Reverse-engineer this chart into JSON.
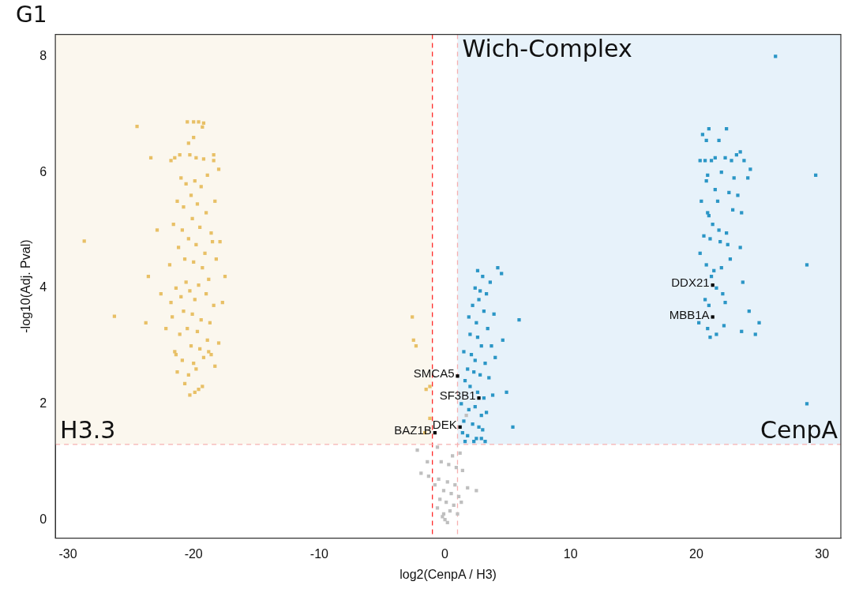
{
  "chart_data": {
    "type": "scatter",
    "title": "G1",
    "xlabel": "log2(CenpA / H3)",
    "ylabel": "-log10(Adj. Pval)",
    "xlim": [
      -31,
      31.5
    ],
    "ylim": [
      -0.32,
      8.38
    ],
    "xticks": [
      -30,
      -20,
      -10,
      0,
      10,
      20,
      30
    ],
    "yticks": [
      0,
      2,
      4,
      6,
      8
    ],
    "grid": false,
    "legend": false,
    "marker": "square",
    "bands": [
      {
        "axis": "x",
        "from": -31,
        "to": -1,
        "label": "H3.3",
        "color": "#fbf7ee"
      },
      {
        "axis": "x",
        "from": 1,
        "to": 31.5,
        "label": "CenpA",
        "color": "#e7f2fa"
      }
    ],
    "ref_lines": [
      {
        "axis": "x",
        "value": -1,
        "color": "#ff2a2a",
        "line_style": "dashed"
      },
      {
        "axis": "x",
        "value": 1,
        "label": "Wich-Complex",
        "color": "#f5b0b0",
        "line_style": "dashed"
      },
      {
        "axis": "y",
        "value": 1.3,
        "color": "#f5b0b0",
        "line_style": "dashed"
      }
    ],
    "annotations": [
      {
        "text": "DDX21",
        "x": 21.3,
        "y": 4.05
      },
      {
        "text": "MBB1A",
        "x": 21.3,
        "y": 3.5
      },
      {
        "text": "SMCA5",
        "x": 1.0,
        "y": 2.48
      },
      {
        "text": "SF3B1",
        "x": 2.7,
        "y": 2.1
      },
      {
        "text": "BAZ1B",
        "x": -0.8,
        "y": 1.5
      },
      {
        "text": "DEK",
        "x": 1.2,
        "y": 1.6
      }
    ],
    "series": [
      {
        "color": "#e8c066",
        "x": [
          -28.7,
          -26.3,
          -24.5,
          -23.4,
          -23.6,
          -23.8,
          -22.9,
          -22.6,
          -22.2,
          -21.8,
          -21.4,
          -20.3,
          -19.9,
          -19.6,
          -20.5,
          -20.0,
          -19.6,
          -19.2,
          -19.3,
          -20.0,
          -20.4,
          -21.1,
          -21.5,
          -21.8,
          -20.3,
          -19.8,
          -19.2,
          -18.4,
          -18.0,
          -18.4,
          -21.0,
          -20.6,
          -19.9,
          -19.4,
          -18.9,
          -20.2,
          -21.3,
          -20.8,
          -19.7,
          -19.0,
          -18.3,
          -20.1,
          -21.6,
          -20.9,
          -19.5,
          -18.6,
          -17.9,
          -20.4,
          -21.2,
          -19.8,
          -19.1,
          -18.5,
          -20.7,
          -21.9,
          -20.0,
          -19.3,
          -18.2,
          -17.5,
          -20.6,
          -21.4,
          -19.6,
          -18.8,
          -20.3,
          -21.0,
          -19.9,
          -19.0,
          -18.4,
          -17.7,
          -20.8,
          -21.7,
          -20.1,
          -19.4,
          -18.7,
          -20.5,
          -21.1,
          -19.7,
          -18.9,
          -18.0,
          -20.2,
          -21.5,
          -19.5,
          -18.6,
          -20.9,
          -20.0,
          -19.2,
          -18.3,
          -21.3,
          -20.4,
          -19.8,
          -18.8,
          -20.7,
          -19.3,
          -2.6,
          -2.5,
          -2.3,
          -1.5,
          -1.2,
          -1.2,
          -1.6
        ],
        "values": [
          4.81,
          3.51,
          6.79,
          6.25,
          4.2,
          3.4,
          5.0,
          3.9,
          3.3,
          3.75,
          2.85,
          2.15,
          2.2,
          2.25,
          6.87,
          6.87,
          6.87,
          6.85,
          6.78,
          6.6,
          6.5,
          6.3,
          6.25,
          6.2,
          6.3,
          6.25,
          6.23,
          6.3,
          6.05,
          6.2,
          5.9,
          5.8,
          5.85,
          5.75,
          5.95,
          5.6,
          5.5,
          5.4,
          5.45,
          5.3,
          5.5,
          5.2,
          5.1,
          5.0,
          5.05,
          4.95,
          4.8,
          4.85,
          4.7,
          4.75,
          4.6,
          4.8,
          4.5,
          4.4,
          4.45,
          4.35,
          4.5,
          4.2,
          4.1,
          4.0,
          4.05,
          4.15,
          3.95,
          3.85,
          3.8,
          3.9,
          3.7,
          3.75,
          3.6,
          3.5,
          3.55,
          3.45,
          3.4,
          3.3,
          3.2,
          3.25,
          3.1,
          3.05,
          3.0,
          2.9,
          2.95,
          2.85,
          2.75,
          2.7,
          2.8,
          2.65,
          2.55,
          2.5,
          2.6,
          2.9,
          2.35,
          2.3,
          3.5,
          3.1,
          3.0,
          2.25,
          2.3,
          1.75,
          1.5
        ]
      },
      {
        "color": "#2b96c6",
        "x": [
          26.3,
          29.5,
          28.8,
          28.8,
          25.0,
          24.7,
          21.0,
          22.4,
          20.5,
          20.8,
          21.8,
          20.7,
          21.2,
          21.5,
          22.3,
          22.8,
          23.2,
          23.5,
          23.8,
          20.3,
          20.9,
          22.0,
          23.0,
          24.3,
          24.1,
          20.8,
          21.5,
          22.6,
          23.3,
          20.4,
          21.7,
          20.9,
          21.0,
          22.9,
          23.6,
          21.3,
          21.8,
          22.4,
          20.6,
          21.1,
          21.9,
          22.5,
          23.5,
          20.3,
          20.8,
          21.4,
          22.0,
          22.7,
          23.7,
          21.2,
          21.6,
          22.1,
          20.7,
          21.0,
          22.3,
          24.2,
          20.2,
          20.9,
          21.6,
          22.2,
          23.6,
          21.1,
          2.6,
          3.0,
          3.6,
          4.2,
          4.5,
          2.4,
          2.8,
          3.3,
          5.9,
          2.2,
          2.7,
          3.1,
          3.9,
          1.9,
          2.5,
          3.4,
          4.6,
          2.0,
          2.6,
          2.9,
          3.7,
          1.5,
          2.1,
          2.4,
          3.2,
          4.0,
          1.8,
          2.3,
          2.8,
          3.5,
          4.9,
          1.6,
          2.0,
          2.6,
          3.1,
          3.8,
          5.4,
          1.3,
          1.9,
          2.4,
          2.9,
          3.3,
          1.5,
          2.2,
          2.7,
          3.0,
          1.4,
          1.8,
          2.5,
          3.2,
          1.6,
          2.3,
          2.9
        ],
        "values": [
          8.0,
          5.95,
          4.4,
          2.0,
          3.4,
          3.2,
          6.75,
          6.75,
          6.65,
          6.55,
          6.55,
          6.2,
          6.2,
          6.25,
          6.25,
          6.2,
          6.3,
          6.35,
          6.2,
          6.2,
          5.95,
          6.0,
          5.9,
          6.05,
          5.9,
          5.85,
          5.7,
          5.65,
          5.6,
          5.5,
          5.5,
          5.3,
          5.25,
          5.35,
          5.3,
          5.1,
          5.0,
          4.95,
          4.9,
          4.85,
          4.8,
          4.75,
          4.7,
          4.6,
          4.4,
          4.3,
          4.35,
          4.5,
          4.1,
          4.2,
          4.0,
          3.9,
          3.8,
          3.7,
          3.75,
          3.6,
          3.4,
          3.3,
          3.2,
          3.35,
          3.25,
          3.15,
          4.3,
          4.2,
          4.1,
          4.35,
          4.25,
          4.0,
          3.95,
          3.9,
          3.45,
          3.7,
          3.8,
          3.6,
          3.55,
          3.5,
          3.4,
          3.3,
          3.1,
          3.2,
          3.15,
          3.0,
          3.0,
          2.9,
          2.85,
          2.75,
          2.7,
          2.8,
          2.6,
          2.55,
          2.5,
          2.45,
          2.2,
          2.4,
          2.3,
          2.2,
          2.1,
          2.15,
          1.6,
          2.0,
          1.9,
          1.95,
          1.8,
          1.85,
          1.7,
          1.65,
          1.6,
          1.55,
          1.5,
          1.45,
          1.4,
          1.35,
          1.35,
          1.35,
          1.4
        ]
      },
      {
        "color": "#bfbfbf",
        "x": [
          -2.2,
          -1.4,
          -1.9,
          -0.6,
          0.6,
          1.2,
          1.7,
          -0.3,
          0.3,
          0.9,
          1.4,
          -1.3,
          -0.5,
          0.2,
          0.8,
          1.8,
          -0.8,
          -0.1,
          0.5,
          1.1,
          2.5,
          -0.4,
          0.1,
          0.7,
          1.3,
          -0.6,
          0.4,
          1.0,
          -0.2,
          0.0,
          -0.1,
          0.2
        ],
        "values": [
          1.2,
          1.0,
          0.8,
          1.25,
          1.1,
          1.15,
          1.8,
          1.0,
          0.95,
          0.9,
          0.85,
          0.75,
          0.7,
          0.65,
          0.6,
          0.55,
          0.6,
          0.5,
          0.45,
          0.4,
          0.5,
          0.35,
          0.3,
          0.25,
          0.3,
          0.2,
          0.15,
          0.1,
          0.05,
          0.0,
          0.1,
          -0.05
        ]
      },
      {
        "color": "#000000",
        "x": [
          21.3,
          21.3,
          1.0,
          2.7,
          -0.8,
          1.2
        ],
        "values": [
          4.05,
          3.5,
          2.48,
          2.1,
          1.5,
          1.6
        ]
      }
    ]
  }
}
